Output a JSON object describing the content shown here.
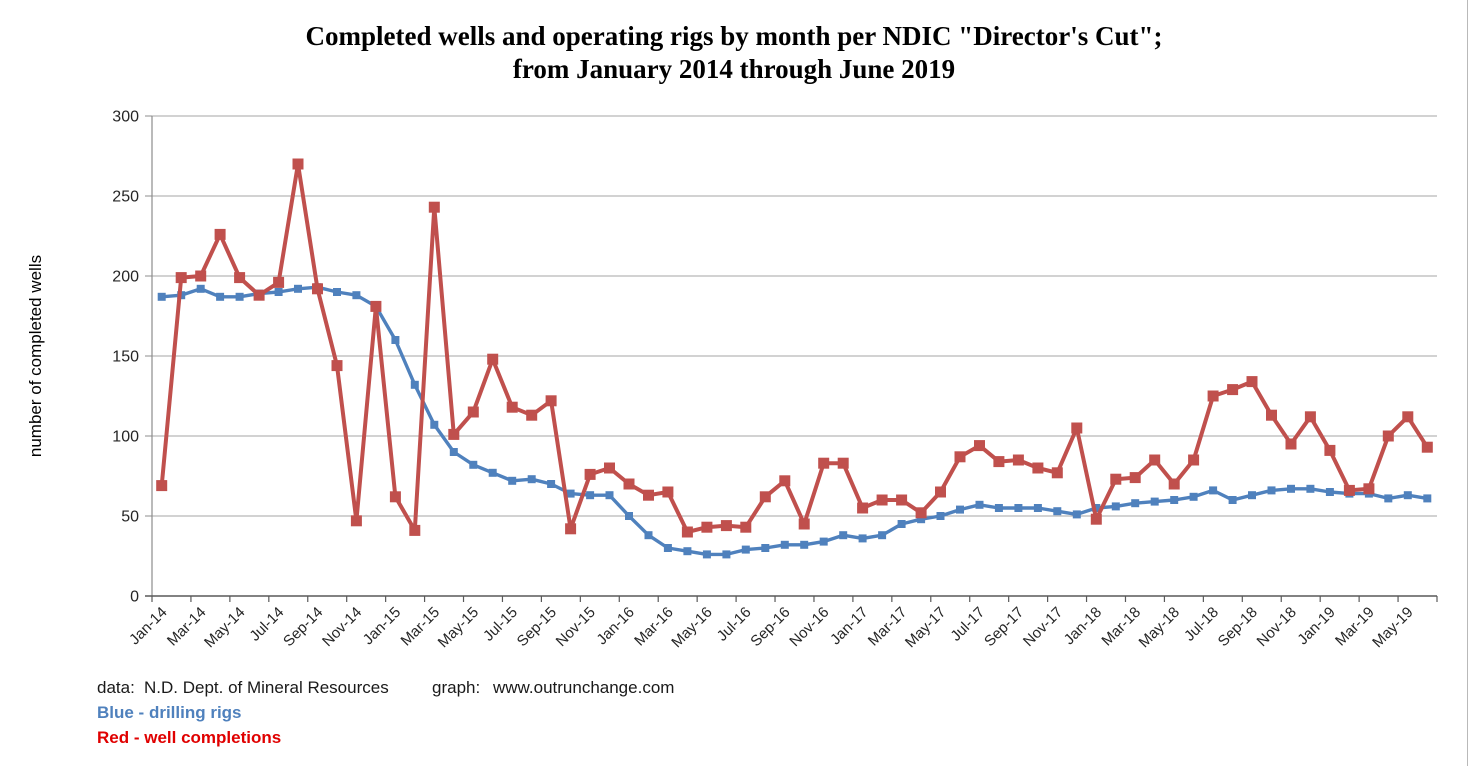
{
  "title": {
    "line1": "Completed wells and operating rigs by month per NDIC \"Director's Cut\";",
    "line2": "from January 2014 through June 2019"
  },
  "y_axis_title": "number of completed wells",
  "footer": {
    "data_label": "data:",
    "data_value": "N.D. Dept. of Mineral Resources",
    "graph_label": "graph:",
    "graph_value": "www.outrunchange.com",
    "legend_blue": "Blue - drilling rigs",
    "legend_red": "Red - well completions"
  },
  "colors": {
    "rigs": "#4F81BD",
    "completions": "#C0504D",
    "legend_blue_text": "#4F81BD",
    "legend_red_text": "#E00000",
    "gridline": "#A6A6A6",
    "axis": "#595959",
    "y_axis_line": "#8C8C8C"
  },
  "chart_data": {
    "type": "line",
    "title": "Completed wells and operating rigs by month per NDIC \"Director's Cut\"; from January 2014 through June 2019",
    "ylabel": "number of completed wells",
    "ylim": [
      0,
      300
    ],
    "y_ticks": [
      0,
      50,
      100,
      150,
      200,
      250,
      300
    ],
    "grid": true,
    "x_label_every": 2,
    "x": [
      "Jan-14",
      "Feb-14",
      "Mar-14",
      "Apr-14",
      "May-14",
      "Jun-14",
      "Jul-14",
      "Aug-14",
      "Sep-14",
      "Oct-14",
      "Nov-14",
      "Dec-14",
      "Jan-15",
      "Feb-15",
      "Mar-15",
      "Apr-15",
      "May-15",
      "Jun-15",
      "Jul-15",
      "Aug-15",
      "Sep-15",
      "Oct-15",
      "Nov-15",
      "Dec-15",
      "Jan-16",
      "Feb-16",
      "Mar-16",
      "Apr-16",
      "May-16",
      "Jun-16",
      "Jul-16",
      "Aug-16",
      "Sep-16",
      "Oct-16",
      "Nov-16",
      "Dec-16",
      "Jan-17",
      "Feb-17",
      "Mar-17",
      "Apr-17",
      "May-17",
      "Jun-17",
      "Jul-17",
      "Aug-17",
      "Sep-17",
      "Oct-17",
      "Nov-17",
      "Dec-17",
      "Jan-18",
      "Feb-18",
      "Mar-18",
      "Apr-18",
      "May-18",
      "Jun-18",
      "Jul-18",
      "Aug-18",
      "Sep-18",
      "Oct-18",
      "Nov-18",
      "Dec-18",
      "Jan-19",
      "Feb-19",
      "Mar-19",
      "Apr-19",
      "May-19",
      "Jun-19"
    ],
    "series": [
      {
        "name": "drilling rigs",
        "color": "#4F81BD",
        "marker_size": 8,
        "line_width": 3.4,
        "values": [
          187,
          188,
          192,
          187,
          187,
          189,
          190,
          192,
          193,
          190,
          188,
          181,
          160,
          132,
          107,
          90,
          82,
          77,
          72,
          73,
          70,
          64,
          63,
          63,
          50,
          38,
          30,
          28,
          26,
          26,
          29,
          30,
          32,
          32,
          34,
          38,
          36,
          38,
          45,
          48,
          50,
          54,
          57,
          55,
          55,
          55,
          53,
          51,
          55,
          56,
          58,
          59,
          60,
          62,
          66,
          60,
          63,
          66,
          67,
          67,
          65,
          64,
          64,
          61,
          63,
          61
        ]
      },
      {
        "name": "well completions",
        "color": "#C0504D",
        "marker_size": 11,
        "line_width": 4,
        "values": [
          69,
          199,
          200,
          226,
          199,
          188,
          196,
          270,
          192,
          144,
          47,
          181,
          62,
          41,
          243,
          101,
          115,
          148,
          118,
          113,
          122,
          42,
          76,
          80,
          70,
          63,
          65,
          40,
          43,
          44,
          43,
          62,
          72,
          45,
          83,
          83,
          55,
          60,
          60,
          52,
          65,
          87,
          94,
          84,
          85,
          80,
          77,
          105,
          48,
          73,
          74,
          85,
          70,
          85,
          125,
          129,
          134,
          113,
          95,
          112,
          91,
          66,
          67,
          100,
          112,
          93
        ]
      }
    ]
  }
}
